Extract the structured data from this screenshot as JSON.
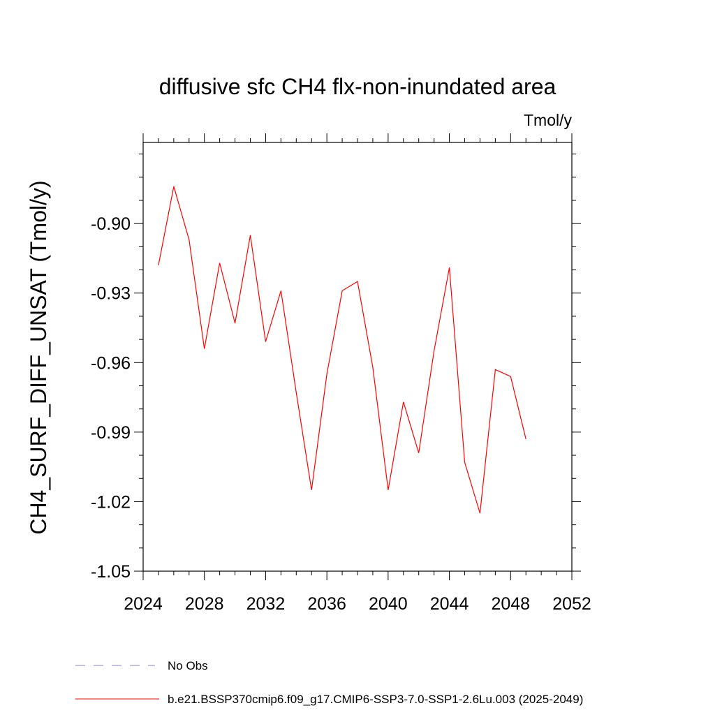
{
  "chart_data": {
    "type": "line",
    "title": "diffusive sfc CH4 flx-non-inundated area",
    "units": "Tmol/y",
    "ylabel": "CH4_SURF_DIFF_UNSAT  (Tmol/y)",
    "xlabel": "",
    "xlim": [
      2024,
      2052
    ],
    "ylim": [
      -1.05,
      -0.865
    ],
    "xticks": [
      2024,
      2028,
      2032,
      2036,
      2040,
      2044,
      2048,
      2052
    ],
    "xtick_labels": [
      "2024",
      "2028",
      "2032",
      "2036",
      "2040",
      "2044",
      "2048",
      "2052"
    ],
    "yticks": [
      -1.05,
      -1.02,
      -0.99,
      -0.96,
      -0.93,
      -0.9
    ],
    "ytick_labels": [
      "-1.05",
      "-1.02",
      "-0.99",
      "-0.96",
      "-0.93",
      "-0.90"
    ],
    "grid": false,
    "legend_position": "bottom-left",
    "series": [
      {
        "name": "b.e21.BSSP370cmip6.f09_g17.CMIP6-SSP3-7.0-SSP1-2.6Lu.003 (2025-2049)",
        "color": "#ff0000",
        "style": "solid",
        "x": [
          2025,
          2026,
          2027,
          2028,
          2029,
          2030,
          2031,
          2032,
          2033,
          2034,
          2035,
          2036,
          2037,
          2038,
          2039,
          2040,
          2041,
          2042,
          2043,
          2044,
          2045,
          2046,
          2047,
          2048,
          2049
        ],
        "y": [
          -0.918,
          -0.884,
          -0.907,
          -0.954,
          -0.917,
          -0.943,
          -0.905,
          -0.951,
          -0.929,
          -0.973,
          -1.015,
          -0.965,
          -0.929,
          -0.925,
          -0.962,
          -1.015,
          -0.977,
          -0.999,
          -0.955,
          -0.919,
          -1.003,
          -1.025,
          -0.963,
          -0.966,
          -0.993
        ]
      }
    ],
    "legend": [
      {
        "label": "No Obs",
        "color": "#8a7fd6",
        "style": "dashed"
      },
      {
        "label": "b.e21.BSSP370cmip6.f09_g17.CMIP6-SSP3-7.0-SSP1-2.6Lu.003 (2025-2049)",
        "color": "#ff0000",
        "style": "solid"
      }
    ]
  }
}
